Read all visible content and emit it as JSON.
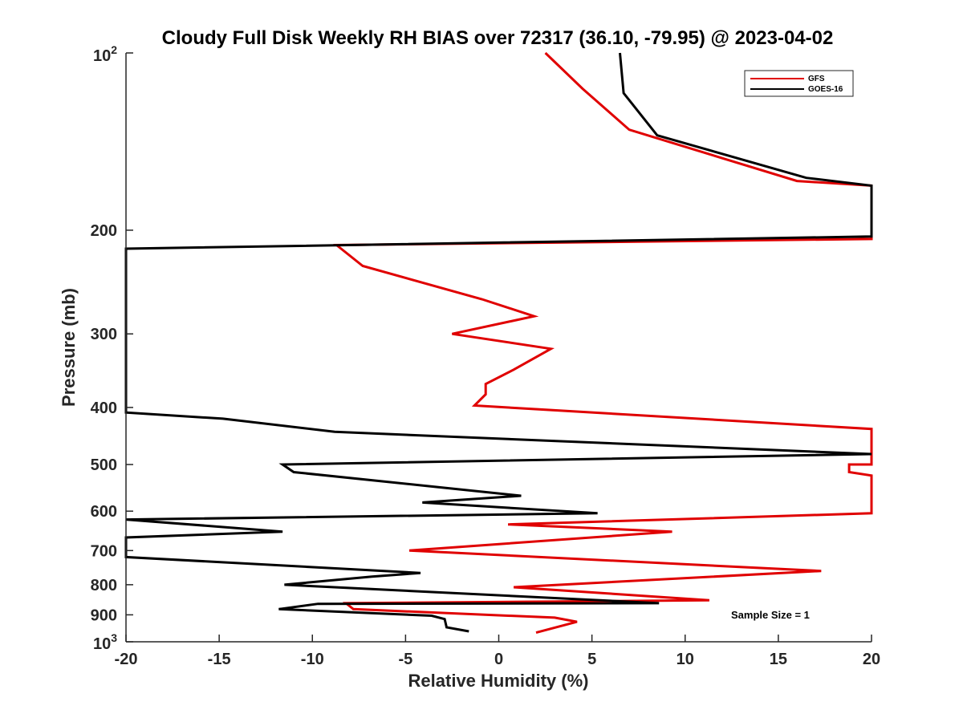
{
  "chart_data": {
    "type": "line",
    "title": "Cloudy Full Disk Weekly RH BIAS over 72317 (36.10, -79.95) @ 2023-04-02",
    "xlabel": "Relative Humidity (%)",
    "ylabel": "Pressure (mb)",
    "xlim": [
      -20,
      20
    ],
    "ylim": [
      100,
      1000
    ],
    "y_scale": "log",
    "y_reversed": true,
    "x_ticks": [
      -20,
      -15,
      -10,
      -5,
      0,
      5,
      10,
      15,
      20
    ],
    "x_tick_labels": [
      "-20",
      "-15",
      "-10",
      "-5",
      "0",
      "5",
      "10",
      "15",
      "20"
    ],
    "y_ticks": [
      200,
      300,
      400,
      500,
      600,
      700,
      800,
      900
    ],
    "y_tick_labels": [
      "200",
      "300",
      "400",
      "500",
      "600",
      "700",
      "800",
      "900"
    ],
    "y_top_label": {
      "base": "10",
      "exp": "2"
    },
    "y_bottom_label": {
      "base": "10",
      "exp": "3"
    },
    "grid": false,
    "legend": {
      "placement": "top-right",
      "entries": [
        "GFS",
        "GOES-16"
      ]
    },
    "annotation": "Sample Size = 1",
    "series": [
      {
        "name": "GFS",
        "color": "#e00000",
        "points": [
          [
            2.5,
            100
          ],
          [
            4.5,
            115
          ],
          [
            7,
            135
          ],
          [
            16,
            165
          ],
          [
            20,
            168
          ],
          [
            20,
            207
          ],
          [
            -8.7,
            212
          ],
          [
            -7.3,
            230
          ],
          [
            -0.9,
            262
          ],
          [
            1.9,
            280
          ],
          [
            -2.5,
            300
          ],
          [
            2.8,
            318
          ],
          [
            0.8,
            345
          ],
          [
            -0.7,
            365
          ],
          [
            -0.7,
            380
          ],
          [
            -1.3,
            397
          ],
          [
            20,
            435
          ],
          [
            20,
            500
          ],
          [
            18.8,
            500
          ],
          [
            18.8,
            515
          ],
          [
            20,
            522
          ],
          [
            20,
            605
          ],
          [
            0.5,
            632
          ],
          [
            9.3,
            650
          ],
          [
            -4.8,
            700
          ],
          [
            12.5,
            745
          ],
          [
            17.3,
            758
          ],
          [
            0.8,
            808
          ],
          [
            11.3,
            850
          ],
          [
            -8.2,
            860
          ],
          [
            -7.8,
            880
          ],
          [
            3,
            910
          ],
          [
            4.2,
            925
          ],
          [
            2,
            965
          ]
        ]
      },
      {
        "name": "GOES-16",
        "color": "#000000",
        "points": [
          [
            6.5,
            100
          ],
          [
            6.7,
            117
          ],
          [
            8.5,
            138
          ],
          [
            16.5,
            163
          ],
          [
            20,
            168
          ],
          [
            20,
            205
          ],
          [
            -20,
            215
          ],
          [
            -20,
            408
          ],
          [
            -14.8,
            418
          ],
          [
            -8.8,
            440
          ],
          [
            20,
            480
          ],
          [
            -11.6,
            500
          ],
          [
            -11,
            515
          ],
          [
            -3.3,
            546
          ],
          [
            1.2,
            565
          ],
          [
            -4.1,
            580
          ],
          [
            5.3,
            605
          ],
          [
            -20,
            620
          ],
          [
            -11.6,
            650
          ],
          [
            -20,
            665
          ],
          [
            -20,
            718
          ],
          [
            -4.2,
            764
          ],
          [
            -6.8,
            775
          ],
          [
            -11.5,
            800
          ],
          [
            8.6,
            860
          ],
          [
            -9.7,
            862
          ],
          [
            -11.8,
            880
          ],
          [
            -3.6,
            903
          ],
          [
            -2.9,
            915
          ],
          [
            -2.8,
            945
          ],
          [
            -1.6,
            960
          ]
        ]
      }
    ]
  }
}
